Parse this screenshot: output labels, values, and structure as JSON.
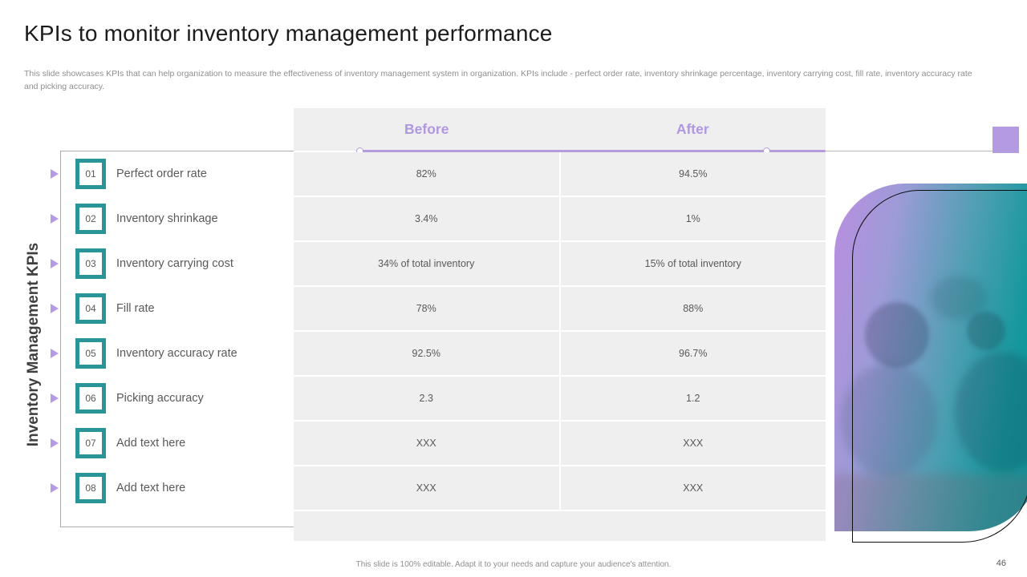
{
  "header": {
    "title": "KPIs to monitor inventory management performance",
    "description": "This slide showcases KPIs that can help organization to measure the effectiveness of inventory management system in organization. KPIs include - perfect order rate, inventory shrinkage percentage, inventory carrying cost, fill rate, inventory accuracy rate and picking accuracy."
  },
  "kpi_list": {
    "vertical_title": "Inventory Management KPIs",
    "items": [
      {
        "number": "01",
        "label": "Perfect order rate"
      },
      {
        "number": "02",
        "label": "Inventory shrinkage"
      },
      {
        "number": "03",
        "label": "Inventory carrying cost"
      },
      {
        "number": "04",
        "label": "Fill rate"
      },
      {
        "number": "05",
        "label": "Inventory accuracy rate"
      },
      {
        "number": "06",
        "label": "Picking accuracy"
      },
      {
        "number": "07",
        "label": "Add text here"
      },
      {
        "number": "08",
        "label": "Add text here"
      }
    ]
  },
  "table": {
    "columns": [
      "Before",
      "After"
    ],
    "rows": [
      {
        "before": "82%",
        "after": "94.5%"
      },
      {
        "before": "3.4%",
        "after": "1%"
      },
      {
        "before": "34% of total inventory",
        "after": "15% of total inventory"
      },
      {
        "before": "78%",
        "after": "88%"
      },
      {
        "before": "92.5%",
        "after": "96.7%"
      },
      {
        "before": "2.3",
        "after": "1.2"
      },
      {
        "before": "XXX",
        "after": "XXX"
      },
      {
        "before": "XXX",
        "after": "XXX"
      }
    ]
  },
  "footer": {
    "note": "This slide is 100% editable. Adapt it to your needs and capture your audience's attention.",
    "page_number": "46"
  },
  "colors": {
    "accent_purple": "#b49be1",
    "accent_teal": "#2a9599",
    "table_bg": "#efefef",
    "text_gray": "#595959"
  }
}
